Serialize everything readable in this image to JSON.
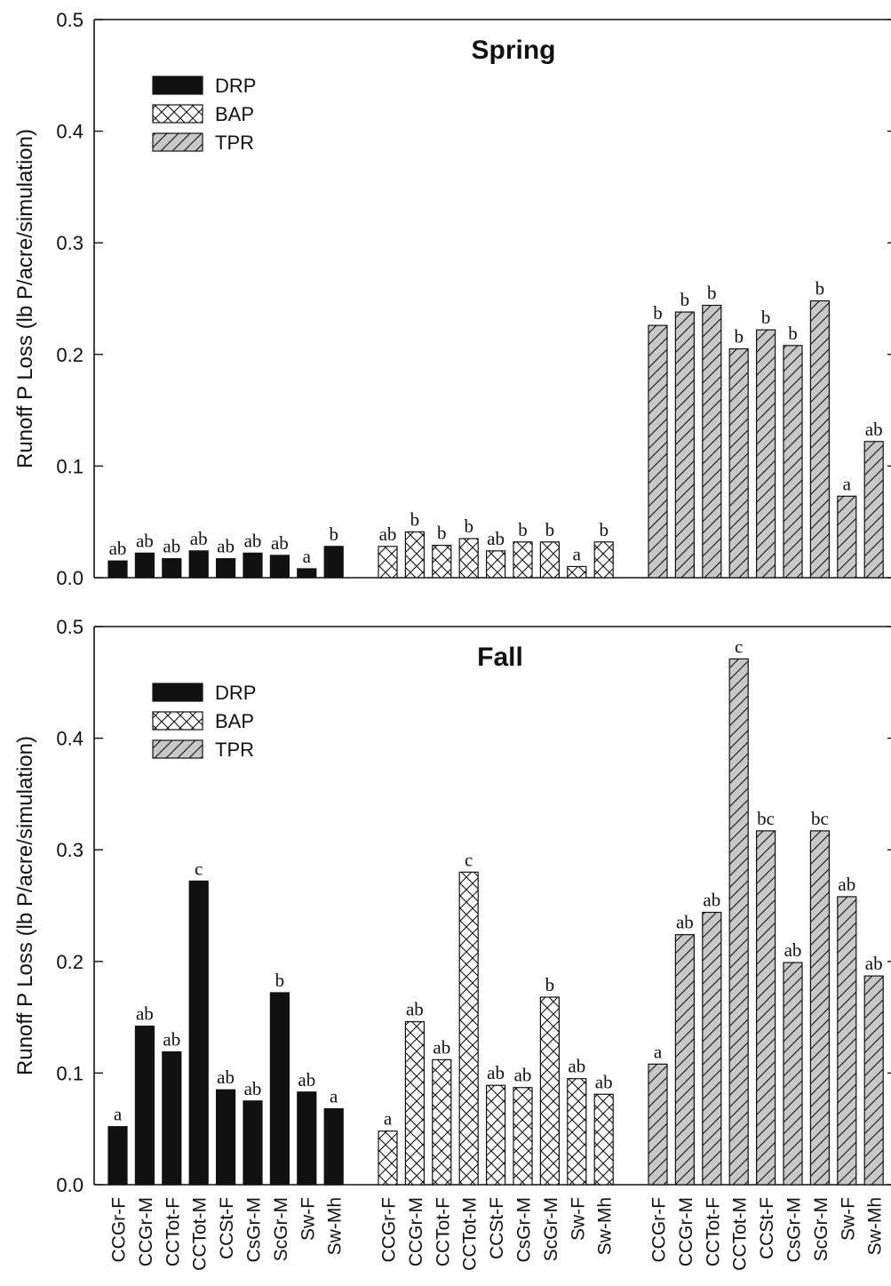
{
  "chart_data": [
    {
      "type": "bar",
      "title": "Spring",
      "ylabel": "Runoff P Loss (lb P/acre/simulation)",
      "ylim": [
        0,
        0.5
      ],
      "yticks": [
        "0.0",
        "0.1",
        "0.2",
        "0.3",
        "0.4",
        "0.5"
      ],
      "categories": [
        "CCGr-F",
        "CCGr-M",
        "CCTot-F",
        "CCTot-M",
        "CCSt-F",
        "CsGr-M",
        "ScGr-M",
        "Sw-F",
        "Sw-Mh"
      ],
      "legend": {
        "position": "top-left",
        "entries": [
          "DRP",
          "BAP",
          "TPR"
        ]
      },
      "series": [
        {
          "name": "DRP",
          "fill": "#111111",
          "pattern": "solid",
          "values": [
            0.015,
            0.022,
            0.017,
            0.024,
            0.017,
            0.022,
            0.02,
            0.008,
            0.028
          ],
          "labels": [
            "ab",
            "ab",
            "ab",
            "ab",
            "ab",
            "ab",
            "ab",
            "a",
            "b"
          ]
        },
        {
          "name": "BAP",
          "fill": "#ffffff",
          "pattern": "crosshatch",
          "values": [
            0.028,
            0.041,
            0.029,
            0.035,
            0.024,
            0.032,
            0.032,
            0.01,
            0.032
          ],
          "labels": [
            "ab",
            "b",
            "b",
            "b",
            "ab",
            "b",
            "b",
            "a",
            "b"
          ]
        },
        {
          "name": "TPR",
          "fill": "#c8c8c8",
          "pattern": "diagonal",
          "values": [
            0.226,
            0.238,
            0.244,
            0.205,
            0.222,
            0.208,
            0.248,
            0.073,
            0.122
          ],
          "labels": [
            "b",
            "b",
            "b",
            "b",
            "b",
            "b",
            "b",
            "a",
            "ab"
          ]
        }
      ]
    },
    {
      "type": "bar",
      "title": "Fall",
      "ylabel": "Runoff P Loss (lb P/acre/simulation)",
      "ylim": [
        0,
        0.5
      ],
      "yticks": [
        "0.0",
        "0.1",
        "0.2",
        "0.3",
        "0.4",
        "0.5"
      ],
      "categories": [
        "CCGr-F",
        "CCGr-M",
        "CCTot-F",
        "CCTot-M",
        "CCSt-F",
        "CsGr-M",
        "ScGr-M",
        "Sw-F",
        "Sw-Mh"
      ],
      "legend": {
        "position": "top-left",
        "entries": [
          "DRP",
          "BAP",
          "TPR"
        ]
      },
      "series": [
        {
          "name": "DRP",
          "fill": "#111111",
          "pattern": "solid",
          "values": [
            0.052,
            0.142,
            0.119,
            0.272,
            0.085,
            0.075,
            0.172,
            0.083,
            0.068
          ],
          "labels": [
            "a",
            "ab",
            "ab",
            "c",
            "ab",
            "ab",
            "b",
            "ab",
            "a"
          ]
        },
        {
          "name": "BAP",
          "fill": "#ffffff",
          "pattern": "crosshatch",
          "values": [
            0.048,
            0.146,
            0.112,
            0.28,
            0.089,
            0.087,
            0.168,
            0.095,
            0.081
          ],
          "labels": [
            "a",
            "ab",
            "ab",
            "c",
            "ab",
            "ab",
            "b",
            "ab",
            "ab"
          ]
        },
        {
          "name": "TPR",
          "fill": "#c8c8c8",
          "pattern": "diagonal",
          "values": [
            0.108,
            0.224,
            0.244,
            0.471,
            0.317,
            0.199,
            0.317,
            0.258,
            0.187
          ],
          "labels": [
            "a",
            "ab",
            "ab",
            "c",
            "bc",
            "ab",
            "bc",
            "ab",
            "ab"
          ]
        }
      ]
    }
  ]
}
